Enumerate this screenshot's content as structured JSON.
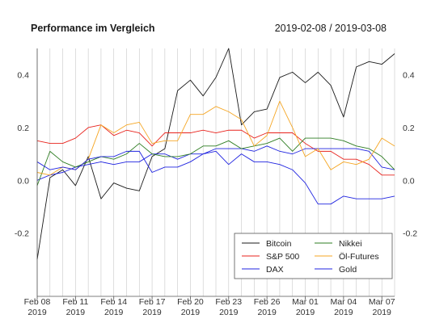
{
  "chart_data": {
    "type": "line",
    "title": "Performance im Vergleich",
    "subtitle": "2019-02-08 / 2019-03-08",
    "x": [
      "2019-02-08",
      "2019-02-09",
      "2019-02-10",
      "2019-02-11",
      "2019-02-12",
      "2019-02-13",
      "2019-02-14",
      "2019-02-15",
      "2019-02-16",
      "2019-02-17",
      "2019-02-18",
      "2019-02-19",
      "2019-02-20",
      "2019-02-21",
      "2019-02-22",
      "2019-02-23",
      "2019-02-24",
      "2019-02-25",
      "2019-02-26",
      "2019-02-27",
      "2019-02-28",
      "2019-03-01",
      "2019-03-02",
      "2019-03-03",
      "2019-03-04",
      "2019-03-05",
      "2019-03-06",
      "2019-03-07",
      "2019-03-08"
    ],
    "x_ticks": [
      {
        "date": "2019-02-08",
        "line1": "Feb 08",
        "line2": "2019"
      },
      {
        "date": "2019-02-11",
        "line1": "Feb 11",
        "line2": "2019"
      },
      {
        "date": "2019-02-14",
        "line1": "Feb 14",
        "line2": "2019"
      },
      {
        "date": "2019-02-17",
        "line1": "Feb 17",
        "line2": "2019"
      },
      {
        "date": "2019-02-20",
        "line1": "Feb 20",
        "line2": "2019"
      },
      {
        "date": "2019-02-23",
        "line1": "Feb 23",
        "line2": "2019"
      },
      {
        "date": "2019-02-26",
        "line1": "Feb 26",
        "line2": "2019"
      },
      {
        "date": "2019-03-01",
        "line1": "Mar 01",
        "line2": "2019"
      },
      {
        "date": "2019-03-04",
        "line1": "Mar 04",
        "line2": "2019"
      },
      {
        "date": "2019-03-07",
        "line1": "Mar 07",
        "line2": "2019"
      }
    ],
    "y_ticks": [
      -0.2,
      0.0,
      0.2,
      0.4
    ],
    "y_tick_labels": [
      "-0.2",
      "0.0",
      "0.2",
      "0.4"
    ],
    "ylim": [
      -0.44,
      0.5
    ],
    "grid": "vertical",
    "legend_position": "bottom-right",
    "series": [
      {
        "name": "Bitcoin",
        "color": "#1a1a1a",
        "values": [
          -0.3,
          0.01,
          0.04,
          -0.02,
          0.09,
          -0.07,
          -0.01,
          -0.03,
          -0.04,
          0.09,
          0.12,
          0.34,
          0.38,
          0.32,
          0.39,
          0.5,
          0.21,
          0.26,
          0.27,
          0.39,
          0.41,
          0.37,
          0.41,
          0.36,
          0.24,
          0.43,
          0.45,
          0.44,
          0.48
        ]
      },
      {
        "name": "S&P 500",
        "color": "#e8231d",
        "values": [
          0.15,
          0.14,
          0.14,
          0.16,
          0.2,
          0.21,
          0.17,
          0.19,
          0.18,
          0.13,
          0.18,
          0.18,
          0.18,
          0.19,
          0.18,
          0.19,
          0.19,
          0.16,
          0.18,
          0.18,
          0.18,
          0.14,
          0.11,
          0.11,
          0.08,
          0.08,
          0.06,
          0.02,
          0.02
        ]
      },
      {
        "name": "DAX",
        "color": "#1f23e0",
        "values": [
          0.0,
          0.02,
          0.03,
          0.05,
          0.06,
          0.07,
          0.06,
          0.07,
          0.07,
          0.1,
          0.1,
          0.08,
          0.1,
          0.1,
          0.12,
          0.12,
          0.12,
          0.11,
          0.13,
          0.11,
          0.1,
          0.12,
          0.12,
          0.12,
          0.12,
          0.12,
          0.11,
          0.05,
          0.04
        ]
      },
      {
        "name": "Nikkei",
        "color": "#2e7d22",
        "values": [
          -0.02,
          0.11,
          0.07,
          0.05,
          0.07,
          0.09,
          0.08,
          0.1,
          0.14,
          0.1,
          0.09,
          0.09,
          0.1,
          0.13,
          0.13,
          0.15,
          0.12,
          0.13,
          0.14,
          0.16,
          0.11,
          0.16,
          0.16,
          0.16,
          0.15,
          0.13,
          0.12,
          0.09,
          0.04
        ]
      },
      {
        "name": "Öl-Futures",
        "color": "#f5a623",
        "values": [
          0.03,
          0.02,
          0.05,
          0.04,
          0.08,
          0.21,
          0.18,
          0.21,
          0.22,
          0.14,
          0.15,
          0.15,
          0.25,
          0.25,
          0.28,
          0.26,
          0.23,
          0.13,
          0.17,
          0.3,
          0.2,
          0.09,
          0.12,
          0.04,
          0.07,
          0.06,
          0.08,
          0.16,
          0.13
        ]
      },
      {
        "name": "Gold",
        "color": "#1f23e0",
        "values": [
          0.07,
          0.04,
          0.05,
          0.04,
          0.08,
          0.09,
          0.09,
          0.11,
          0.11,
          0.03,
          0.05,
          0.05,
          0.07,
          0.1,
          0.11,
          0.06,
          0.1,
          0.07,
          0.07,
          0.06,
          0.04,
          -0.01,
          -0.09,
          -0.09,
          -0.06,
          -0.07,
          -0.07,
          -0.07,
          -0.06
        ]
      }
    ],
    "legend_rows": [
      [
        {
          "series": "Bitcoin"
        },
        {
          "series": "Nikkei"
        }
      ],
      [
        {
          "series": "S&P 500"
        },
        {
          "series": "Öl-Futures"
        }
      ],
      [
        {
          "series": "DAX"
        },
        {
          "series": "Gold"
        }
      ]
    ]
  }
}
